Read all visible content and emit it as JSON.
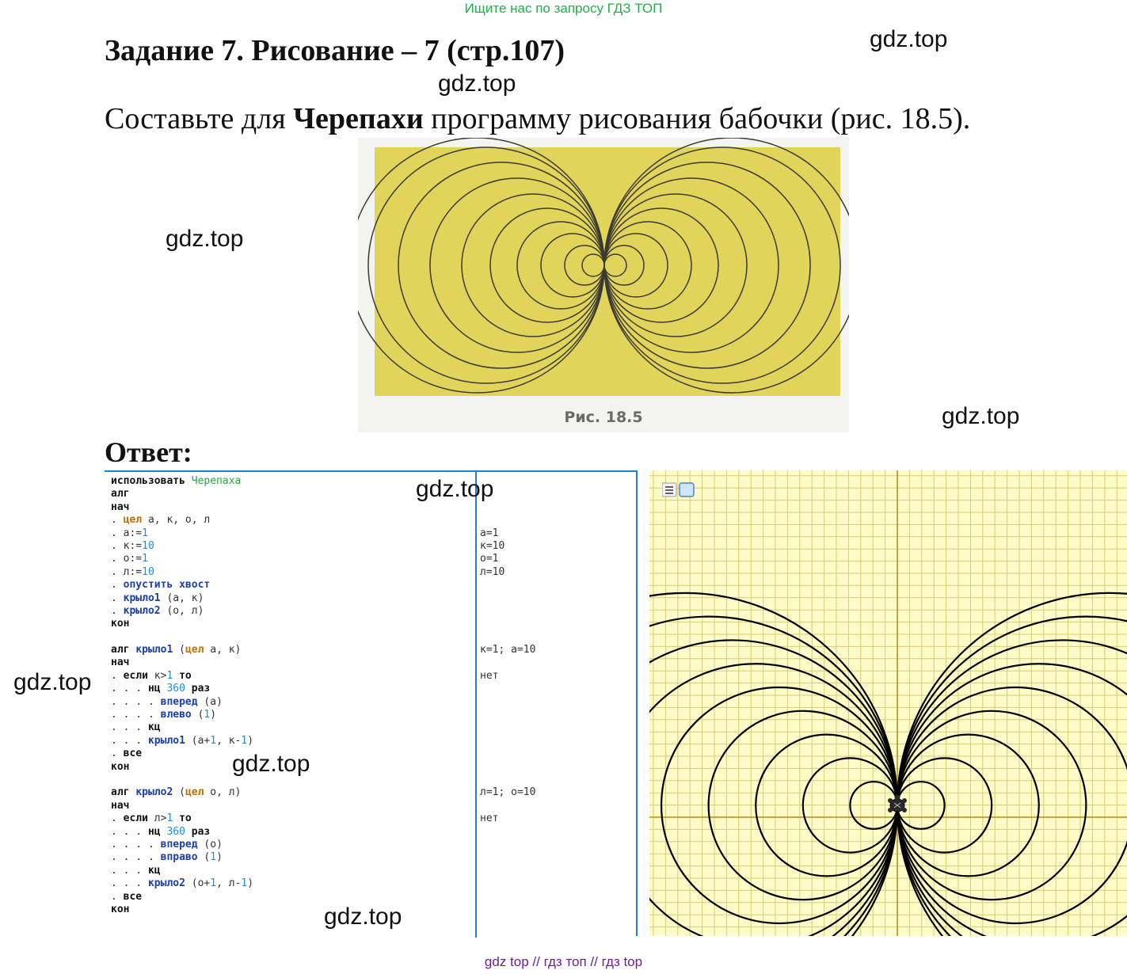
{
  "banner": "Ищите нас по запросу ГДЗ ТОП",
  "title": "Задание 7. Рисование – 7 (стр.107)",
  "task": {
    "before": "Составьте для ",
    "bold": "Черепахи",
    "after": " программу рисования бабочки (рис. 18.5)."
  },
  "figure": {
    "caption": "Рис.  18.5"
  },
  "answer_label": "Ответ:",
  "watermark": "gdz.top",
  "code_lines": [
    [
      [
        "kw",
        "использовать"
      ],
      [
        "pl",
        " "
      ],
      [
        "mod",
        "Черепаха"
      ]
    ],
    [
      [
        "kw",
        "алг"
      ]
    ],
    [
      [
        "kw",
        "нач"
      ]
    ],
    [
      [
        "pl",
        ". "
      ],
      [
        "ty",
        "цел"
      ],
      [
        "pl",
        " а, к, о, л"
      ]
    ],
    [
      [
        "pl",
        ". а:="
      ],
      [
        "num",
        "1"
      ]
    ],
    [
      [
        "pl",
        ". к:="
      ],
      [
        "num",
        "10"
      ]
    ],
    [
      [
        "pl",
        ". о:="
      ],
      [
        "num",
        "1"
      ]
    ],
    [
      [
        "pl",
        ". л:="
      ],
      [
        "num",
        "10"
      ]
    ],
    [
      [
        "pl",
        ". "
      ],
      [
        "fn",
        "опустить хвост"
      ]
    ],
    [
      [
        "pl",
        ". "
      ],
      [
        "fn",
        "крыло1"
      ],
      [
        "pl",
        " (а, к)"
      ]
    ],
    [
      [
        "pl",
        ". "
      ],
      [
        "fn",
        "крыло2"
      ],
      [
        "pl",
        " (о, л)"
      ]
    ],
    [
      [
        "kw",
        "кон"
      ]
    ],
    [],
    [
      [
        "kw",
        "алг"
      ],
      [
        "pl",
        " "
      ],
      [
        "fn",
        "крыло1"
      ],
      [
        "pl",
        " ("
      ],
      [
        "ty",
        "цел"
      ],
      [
        "pl",
        " а, к)"
      ]
    ],
    [
      [
        "kw",
        "нач"
      ]
    ],
    [
      [
        "pl",
        ". "
      ],
      [
        "kw",
        "если"
      ],
      [
        "pl",
        " к>"
      ],
      [
        "num",
        "1"
      ],
      [
        "pl",
        " "
      ],
      [
        "kw",
        "то"
      ]
    ],
    [
      [
        "pl",
        ". . . "
      ],
      [
        "kw",
        "нц"
      ],
      [
        "pl",
        " "
      ],
      [
        "num",
        "360"
      ],
      [
        "pl",
        " "
      ],
      [
        "kw",
        "раз"
      ]
    ],
    [
      [
        "pl",
        ". . . . "
      ],
      [
        "fn",
        "вперед"
      ],
      [
        "pl",
        " (а)"
      ]
    ],
    [
      [
        "pl",
        ". . . . "
      ],
      [
        "fn",
        "влево"
      ],
      [
        "pl",
        " ("
      ],
      [
        "num",
        "1"
      ],
      [
        "pl",
        ")"
      ]
    ],
    [
      [
        "pl",
        ". . . "
      ],
      [
        "kw",
        "кц"
      ]
    ],
    [
      [
        "pl",
        ". . . "
      ],
      [
        "fn",
        "крыло1"
      ],
      [
        "pl",
        " (а+"
      ],
      [
        "num",
        "1"
      ],
      [
        "pl",
        ", к-"
      ],
      [
        "num",
        "1"
      ],
      [
        "pl",
        ")"
      ]
    ],
    [
      [
        "pl",
        ". "
      ],
      [
        "kw",
        "все"
      ]
    ],
    [
      [
        "kw",
        "кон"
      ]
    ],
    [],
    [
      [
        "kw",
        "алг"
      ],
      [
        "pl",
        " "
      ],
      [
        "fn",
        "крыло2"
      ],
      [
        "pl",
        " ("
      ],
      [
        "ty",
        "цел"
      ],
      [
        "pl",
        " о, л)"
      ]
    ],
    [
      [
        "kw",
        "нач"
      ]
    ],
    [
      [
        "pl",
        ". "
      ],
      [
        "kw",
        "если"
      ],
      [
        "pl",
        " л>"
      ],
      [
        "num",
        "1"
      ],
      [
        "pl",
        " "
      ],
      [
        "kw",
        "то"
      ]
    ],
    [
      [
        "pl",
        ". . . "
      ],
      [
        "kw",
        "нц"
      ],
      [
        "pl",
        " "
      ],
      [
        "num",
        "360"
      ],
      [
        "pl",
        " "
      ],
      [
        "kw",
        "раз"
      ]
    ],
    [
      [
        "pl",
        ". . . . "
      ],
      [
        "fn",
        "вперед"
      ],
      [
        "pl",
        " (о)"
      ]
    ],
    [
      [
        "pl",
        ". . . . "
      ],
      [
        "fn",
        "вправо"
      ],
      [
        "pl",
        " ("
      ],
      [
        "num",
        "1"
      ],
      [
        "pl",
        ")"
      ]
    ],
    [
      [
        "pl",
        ". . . "
      ],
      [
        "kw",
        "кц"
      ]
    ],
    [
      [
        "pl",
        ". . . "
      ],
      [
        "fn",
        "крыло2"
      ],
      [
        "pl",
        " (о+"
      ],
      [
        "num",
        "1"
      ],
      [
        "pl",
        ", л-"
      ],
      [
        "num",
        "1"
      ],
      [
        "pl",
        ")"
      ]
    ],
    [
      [
        "pl",
        ". "
      ],
      [
        "kw",
        "все"
      ]
    ],
    [
      [
        "kw",
        "кон"
      ]
    ]
  ],
  "margin_lines": [
    "",
    "",
    "",
    "",
    "а=1",
    "к=10",
    "о=1",
    "л=10",
    "",
    "",
    "",
    "",
    "",
    "к=1; а=10",
    "",
    "нет",
    "",
    "",
    "",
    "",
    "",
    "",
    "",
    "",
    "л=1; о=10",
    "",
    "нет",
    "",
    "",
    "",
    "",
    "",
    "",
    ""
  ],
  "footer": "gdz top  //  гдз топ  //  гдз top",
  "colors": {
    "grid_bg": "#fdfbc8",
    "grid_line": "#d7cd75",
    "axis": "#b58a1a",
    "figure_bg": "#e1d45a",
    "editor_border": "#1f7fd0"
  },
  "icons": [
    "menu-icon",
    "square-icon",
    "turtle-icon"
  ]
}
